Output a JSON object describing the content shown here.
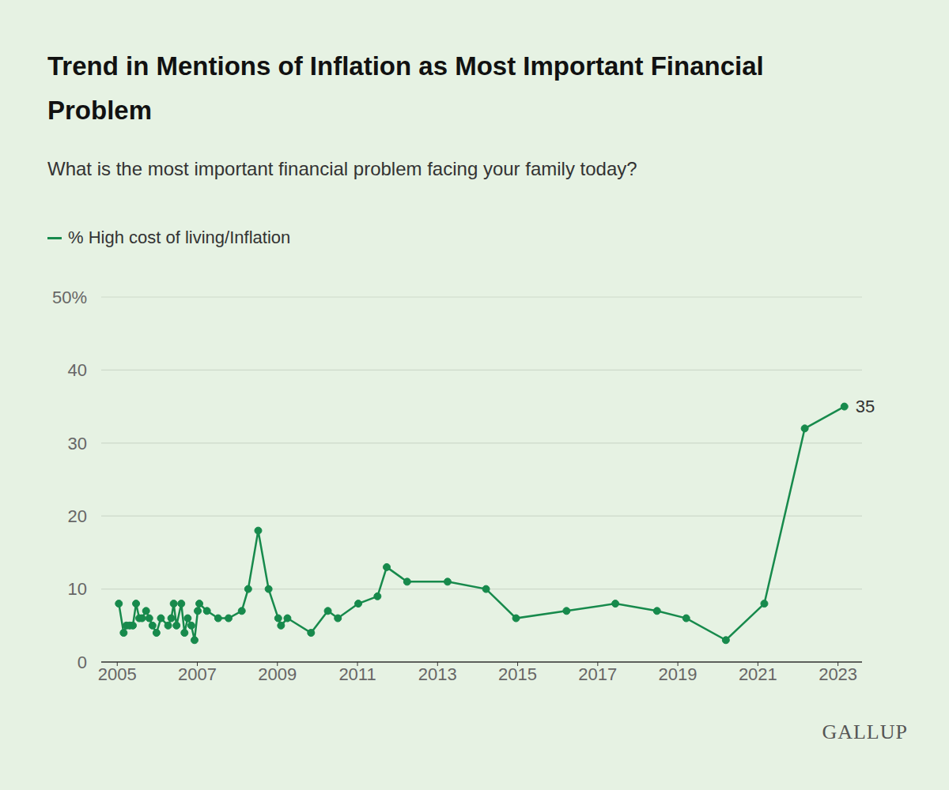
{
  "chart_data": {
    "type": "line",
    "title": "Trend in Mentions of Inflation as Most Important Financial Problem",
    "subtitle": "What is the most important financial problem facing your family today?",
    "source": "GALLUP",
    "x": [
      2005.04,
      2005.16,
      2005.23,
      2005.31,
      2005.39,
      2005.47,
      2005.55,
      2005.62,
      2005.72,
      2005.8,
      2005.88,
      2005.98,
      2006.09,
      2006.27,
      2006.35,
      2006.41,
      2006.48,
      2006.6,
      2006.68,
      2006.76,
      2006.85,
      2006.93,
      2007.01,
      2007.05,
      2007.24,
      2007.52,
      2007.78,
      2008.11,
      2008.27,
      2008.52,
      2008.78,
      2009.02,
      2009.09,
      2009.25,
      2009.84,
      2010.26,
      2010.51,
      2011.02,
      2011.5,
      2011.73,
      2012.24,
      2013.25,
      2014.21,
      2014.96,
      2016.22,
      2017.44,
      2018.48,
      2019.21,
      2020.2,
      2021.16,
      2022.17,
      2023.16
    ],
    "series": [
      {
        "name": "% High cost of living/Inflation",
        "color": "#178a4c",
        "marker": "circle",
        "values": [
          8,
          4,
          5,
          5,
          5,
          8,
          6,
          6,
          7,
          6,
          5,
          4,
          6,
          5,
          6,
          8,
          5,
          8,
          4,
          6,
          5,
          3,
          7,
          8,
          7,
          6,
          6,
          7,
          10,
          18,
          10,
          6,
          5,
          6,
          4,
          7,
          6,
          8,
          9,
          13,
          11,
          11,
          10,
          6,
          7,
          8,
          7,
          6,
          3,
          8,
          32,
          35
        ]
      }
    ],
    "annotations": [
      {
        "text": "35",
        "x": 2023.16,
        "y": 35
      }
    ],
    "xlim": [
      2004.6,
      2023.6
    ],
    "xticks": [
      2005,
      2007,
      2009,
      2011,
      2013,
      2015,
      2017,
      2019,
      2021,
      2023
    ],
    "ylim": [
      0,
      50
    ],
    "yticks": [
      0,
      10,
      20,
      30,
      40,
      {
        "value": 50,
        "label": "50%"
      }
    ],
    "grid": true,
    "legend": "top-left"
  }
}
